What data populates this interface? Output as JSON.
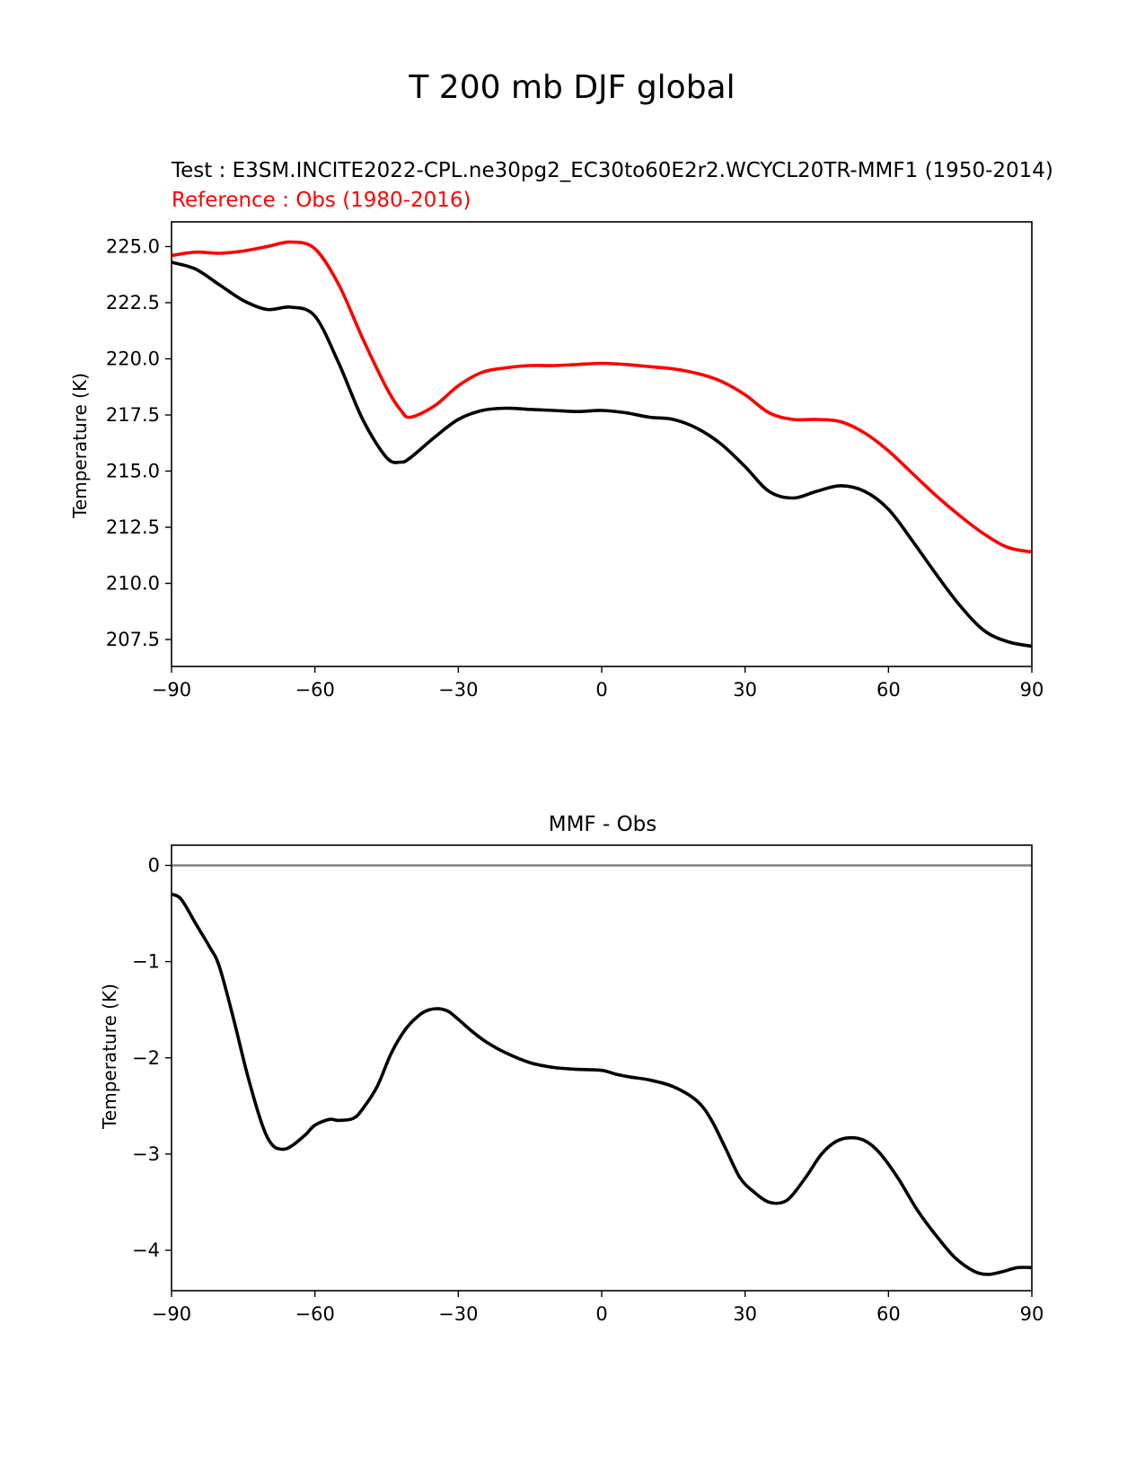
{
  "figure_title": "T 200 mb DJF global",
  "chart_data": [
    {
      "type": "line",
      "title": "",
      "subtitle_test": "Test : E3SM.INCITE2022-CPL.ne30pg2_EC30to60E2r2.WCYCL20TR-MMF1 (1950-2014)",
      "subtitle_reference": "Reference : Obs (1980-2016)",
      "xlabel": "",
      "ylabel": "Temperature (K)",
      "xlim": [
        -90,
        90
      ],
      "ylim": [
        206.3,
        226.1
      ],
      "xticks": [
        -90,
        -60,
        -30,
        0,
        30,
        60,
        90
      ],
      "xtick_labels": [
        "−90",
        "−60",
        "−30",
        "0",
        "30",
        "60",
        "90"
      ],
      "yticks": [
        207.5,
        210.0,
        212.5,
        215.0,
        217.5,
        220.0,
        222.5,
        225.0
      ],
      "ytick_labels": [
        "207.5",
        "210.0",
        "212.5",
        "215.0",
        "217.5",
        "220.0",
        "222.5",
        "225.0"
      ],
      "series": [
        {
          "name": "Test",
          "color": "#000000",
          "x": [
            -90,
            -85,
            -80,
            -75,
            -70,
            -65,
            -60,
            -55,
            -50,
            -45,
            -42,
            -40,
            -35,
            -30,
            -25,
            -20,
            -15,
            -10,
            -5,
            0,
            5,
            10,
            15,
            20,
            25,
            30,
            35,
            40,
            45,
            50,
            55,
            60,
            65,
            70,
            75,
            80,
            85,
            90
          ],
          "values": [
            224.3,
            224.0,
            223.3,
            222.6,
            222.2,
            222.3,
            221.9,
            219.8,
            217.3,
            215.6,
            215.4,
            215.6,
            216.5,
            217.3,
            217.7,
            217.8,
            217.75,
            217.7,
            217.65,
            217.7,
            217.6,
            217.4,
            217.3,
            216.9,
            216.2,
            215.2,
            214.1,
            213.8,
            214.1,
            214.35,
            214.1,
            213.3,
            211.9,
            210.4,
            209.0,
            207.9,
            207.4,
            207.2
          ]
        },
        {
          "name": "Reference",
          "color": "#ff0000",
          "x": [
            -90,
            -85,
            -80,
            -75,
            -70,
            -65,
            -60,
            -55,
            -50,
            -45,
            -42,
            -40,
            -35,
            -30,
            -25,
            -20,
            -15,
            -10,
            -5,
            0,
            5,
            10,
            15,
            20,
            25,
            30,
            35,
            40,
            45,
            50,
            55,
            60,
            65,
            70,
            75,
            80,
            85,
            90
          ],
          "values": [
            224.6,
            224.75,
            224.7,
            224.8,
            225.0,
            225.2,
            224.9,
            223.3,
            220.9,
            218.7,
            217.7,
            217.4,
            217.9,
            218.8,
            219.4,
            219.6,
            219.7,
            219.7,
            219.75,
            219.8,
            219.75,
            219.65,
            219.55,
            219.35,
            219.0,
            218.4,
            217.6,
            217.3,
            217.3,
            217.2,
            216.7,
            215.9,
            214.9,
            213.9,
            213.0,
            212.2,
            211.6,
            211.4
          ]
        }
      ]
    },
    {
      "type": "line",
      "title": "MMF - Obs",
      "xlabel": "",
      "ylabel": "Temperature (K)",
      "xlim": [
        -90,
        90
      ],
      "ylim": [
        -4.42,
        0.21
      ],
      "xticks": [
        -90,
        -60,
        -30,
        0,
        30,
        60,
        90
      ],
      "xtick_labels": [
        "−90",
        "−60",
        "−30",
        "0",
        "30",
        "60",
        "90"
      ],
      "yticks": [
        -4,
        -3,
        -2,
        -1,
        0
      ],
      "ytick_labels": [
        "−4",
        "−3",
        "−2",
        "−1",
        "0"
      ],
      "zero_line": {
        "value": 0,
        "color": "#808080"
      },
      "series": [
        {
          "name": "MMF - Obs",
          "color": "#000000",
          "x": [
            -90,
            -88,
            -85,
            -82,
            -80,
            -77,
            -74,
            -71,
            -69,
            -67,
            -65,
            -62,
            -60,
            -57,
            -55,
            -52,
            -50,
            -47,
            -44,
            -41,
            -38,
            -36,
            -34,
            -32,
            -30,
            -27,
            -24,
            -20,
            -15,
            -10,
            -5,
            0,
            3,
            6,
            10,
            15,
            20,
            23,
            26,
            29,
            32,
            35,
            38,
            40,
            43,
            46,
            49,
            52,
            55,
            58,
            62,
            66,
            70,
            74,
            78,
            81,
            84,
            87,
            90
          ],
          "values": [
            -0.3,
            -0.35,
            -0.6,
            -0.85,
            -1.05,
            -1.6,
            -2.2,
            -2.7,
            -2.9,
            -2.95,
            -2.92,
            -2.8,
            -2.7,
            -2.64,
            -2.65,
            -2.63,
            -2.53,
            -2.3,
            -1.95,
            -1.7,
            -1.55,
            -1.5,
            -1.49,
            -1.52,
            -1.6,
            -1.73,
            -1.84,
            -1.95,
            -2.05,
            -2.1,
            -2.12,
            -2.13,
            -2.17,
            -2.2,
            -2.23,
            -2.3,
            -2.45,
            -2.65,
            -2.95,
            -3.25,
            -3.4,
            -3.5,
            -3.5,
            -3.42,
            -3.22,
            -3.0,
            -2.87,
            -2.83,
            -2.86,
            -2.98,
            -3.25,
            -3.58,
            -3.85,
            -4.08,
            -4.22,
            -4.25,
            -4.22,
            -4.18,
            -4.18
          ]
        }
      ]
    }
  ]
}
